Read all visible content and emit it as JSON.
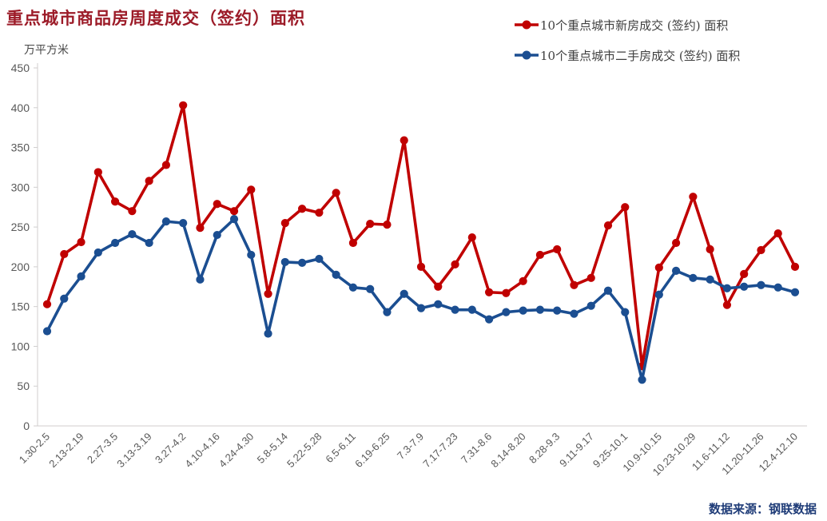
{
  "header": {
    "title": "重点城市商品房周度成交（签约）面积",
    "title_color": "#9C1B28",
    "unit_label": "万平方米"
  },
  "footer": {
    "source": "数据来源：钢联数据",
    "source_color": "#1F3C78"
  },
  "chart_data": {
    "type": "line",
    "title": "重点城市商品房周度成交（签约）面积",
    "ylabel": "万平方米",
    "ylim": [
      0,
      450
    ],
    "ytick_step": 50,
    "grid": false,
    "legend_position": "top-right",
    "tick_every": 2,
    "n_points": 45,
    "x_tick_labels": [
      "1.30-2.5",
      "2.13-2.19",
      "2.27-3.5",
      "3.13-3.19",
      "3.27-4.2",
      "4.10-4.16",
      "4.24-4.30",
      "5.8-5.14",
      "5.22-5.28",
      "6.5-6.11",
      "6.19-6.25",
      "7.3-7.9",
      "7.17-7.23",
      "7.31-8.6",
      "8.14-8.20",
      "8.28-9.3",
      "9.11-9.17",
      "9.25-10.1",
      "10.9-10.15",
      "10.23-10.29",
      "11.6-11.12",
      "11.20-11.26",
      "12.4-12.10"
    ],
    "axis_color": "#D0CECE",
    "tick_label_color": "#595959",
    "series": [
      {
        "name": "10个重点城市新房成交 (签约) 面积",
        "color": "#C00000",
        "values": [
          153,
          216,
          231,
          319,
          282,
          270,
          308,
          328,
          403,
          249,
          279,
          270,
          297,
          166,
          255,
          273,
          268,
          293,
          230,
          254,
          253,
          359,
          200,
          175,
          203,
          237,
          168,
          167,
          182,
          215,
          222,
          177,
          186,
          252,
          275,
          75,
          199,
          230,
          288,
          222,
          152,
          191,
          221,
          242,
          200
        ]
      },
      {
        "name": "10个重点城市二手房成交 (签约) 面积",
        "color": "#1B4E91",
        "values": [
          119,
          160,
          188,
          218,
          230,
          241,
          230,
          257,
          255,
          184,
          240,
          260,
          215,
          116,
          206,
          205,
          210,
          190,
          174,
          172,
          143,
          166,
          148,
          153,
          146,
          146,
          134,
          143,
          145,
          146,
          145,
          141,
          151,
          170,
          143,
          58,
          165,
          195,
          186,
          184,
          173,
          175,
          177,
          174,
          168
        ]
      }
    ]
  }
}
